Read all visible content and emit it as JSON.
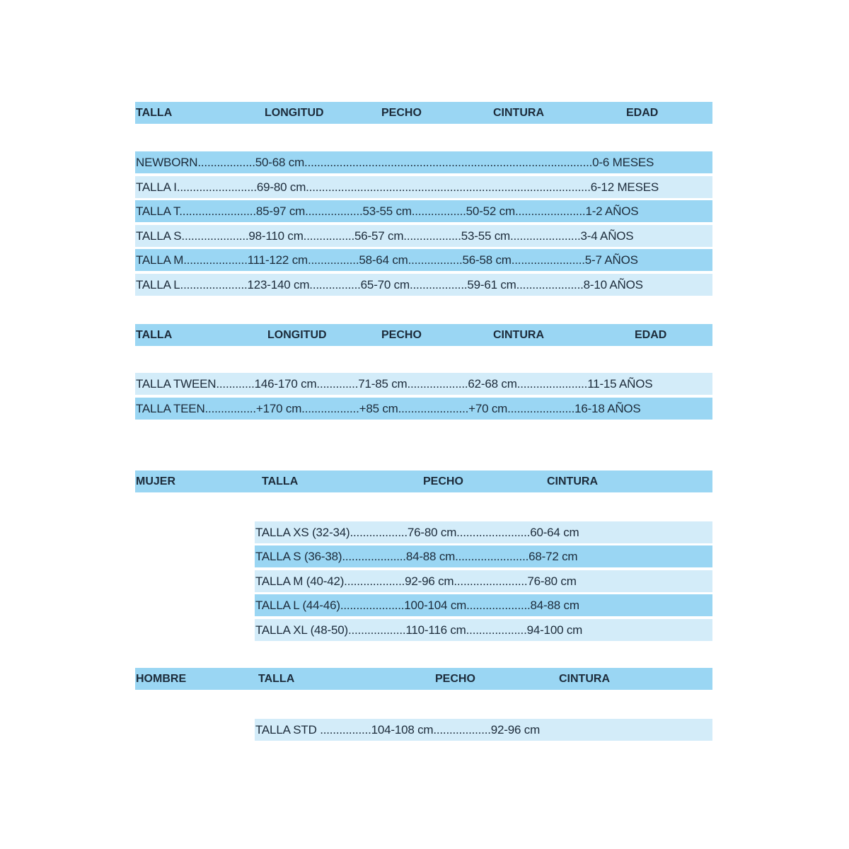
{
  "kids_header": [
    "TALLA",
    "LONGITUD",
    "PECHO",
    "CINTURA",
    "EDAD"
  ],
  "kids_rows": [
    "NEWBORN..................50-68 cm..........................................................................................0-6 MESES",
    "TALLA I.........................69-80 cm.........................................................................................6-12 MESES",
    "TALLA T........................85-97 cm..................53-55 cm.................50-52 cm......................1-2 AÑOS",
    "TALLA S.....................98-110 cm................56-57 cm..................53-55 cm......................3-4 AÑOS",
    "TALLA M....................111-122 cm................58-64 cm.................56-58 cm.......................5-7 AÑOS",
    "TALLA L.....................123-140 cm................65-70 cm..................59-61 cm.....................8-10 AÑOS"
  ],
  "teen_header": [
    "TALLA",
    "LONGITUD",
    "PECHO",
    "CINTURA",
    "EDAD"
  ],
  "teen_rows": [
    "TALLA TWEEN............146-170 cm.............71-85 cm...................62-68 cm......................11-15 AÑOS",
    "TALLA TEEN................+170 cm..................+85 cm......................+70 cm.....................16-18 AÑOS"
  ],
  "mujer_header": [
    "MUJER",
    "TALLA",
    "PECHO",
    "CINTURA"
  ],
  "mujer_rows": [
    "TALLA XS (32-34)..................76-80 cm.......................60-64 cm",
    "TALLA S (36-38)....................84-88 cm.......................68-72 cm",
    "TALLA M (40-42)...................92-96 cm.......................76-80 cm",
    "TALLA L (44-46)....................100-104 cm....................84-88 cm",
    "TALLA XL (48-50)..................110-116 cm...................94-100 cm"
  ],
  "hombre_header": [
    "HOMBRE",
    "TALLA",
    "PECHO",
    "CINTURA"
  ],
  "hombre_rows": [
    "TALLA STD ................104-108 cm..................92-96 cm"
  ],
  "colors": {
    "band_dark": "#9ad6f3",
    "band_light": "#d3ecf9",
    "text": "#1c2b3a"
  }
}
